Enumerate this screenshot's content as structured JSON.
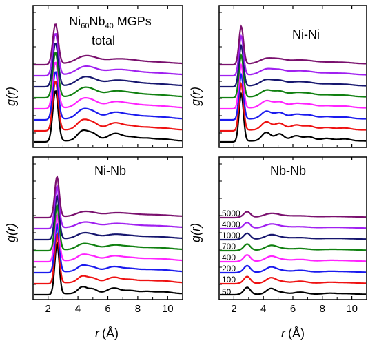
{
  "figure": {
    "ylabel": "g(r)",
    "xlabel_main": "r",
    "xlabel_unit": "(Å)"
  },
  "series_labels": [
    "50",
    "100",
    "200",
    "400",
    "700",
    "1000",
    "4000",
    "5000"
  ],
  "series_colors": [
    "#000000",
    "#ee1111",
    "#1a1aee",
    "#ff22ff",
    "#108010",
    "#16166e",
    "#a020f0",
    "#7a106e"
  ],
  "chart_data": [
    {
      "type": "line",
      "title": "Ni60Nb40 MGPs",
      "title_parts": {
        "base1": "Ni",
        "sub1": "60",
        "base2": "Nb",
        "sub2": "40",
        "rest": " MGPs"
      },
      "subtitle": "total",
      "xlabel": "r (Å)",
      "ylabel": "g(r)",
      "xlim": [
        1,
        11
      ],
      "xticks": [
        "2",
        "4",
        "6",
        "8",
        "10"
      ],
      "curves": "one curve per series_labels entry, stacked vertically in order 50 (bottom) to 5000 (top)",
      "peaks": [
        {
          "r": 2.5,
          "h": 9.5,
          "w": 0.18
        },
        {
          "r": 4.3,
          "h": 1.8,
          "w": 0.35
        },
        {
          "r": 5.0,
          "h": 1.3,
          "w": 0.35
        },
        {
          "r": 6.5,
          "h": 1.4,
          "w": 0.5
        },
        {
          "r": 7.6,
          "h": 0.6,
          "w": 0.4
        },
        {
          "r": 8.6,
          "h": 0.5,
          "w": 0.5
        },
        {
          "r": 9.8,
          "h": 0.3,
          "w": 0.5
        }
      ]
    },
    {
      "type": "line",
      "title": "Ni-Ni",
      "xlabel": "r (Å)",
      "ylabel": "g(r)",
      "xlim": [
        1,
        11
      ],
      "xticks": [
        "2",
        "4",
        "6",
        "8",
        "10"
      ],
      "peaks": [
        {
          "r": 2.5,
          "h": 9.5,
          "w": 0.15
        },
        {
          "r": 4.2,
          "h": 1.7,
          "w": 0.3
        },
        {
          "r": 5.1,
          "h": 1.4,
          "w": 0.3
        },
        {
          "r": 6.2,
          "h": 1.0,
          "w": 0.35
        },
        {
          "r": 7.1,
          "h": 0.8,
          "w": 0.35
        },
        {
          "r": 8.3,
          "h": 0.5,
          "w": 0.4
        },
        {
          "r": 9.5,
          "h": 0.4,
          "w": 0.4
        }
      ]
    },
    {
      "type": "line",
      "title": "Ni-Nb",
      "xlabel": "r (Å)",
      "ylabel": "g(r)",
      "xlim": [
        1,
        11
      ],
      "xticks": [
        "2",
        "4",
        "6",
        "8",
        "10"
      ],
      "peaks": [
        {
          "r": 2.6,
          "h": 9.0,
          "w": 0.15
        },
        {
          "r": 4.3,
          "h": 1.2,
          "w": 0.3
        },
        {
          "r": 5.0,
          "h": 0.8,
          "w": 0.3
        },
        {
          "r": 6.4,
          "h": 1.0,
          "w": 0.45
        },
        {
          "r": 7.5,
          "h": 0.5,
          "w": 0.4
        },
        {
          "r": 8.6,
          "h": 0.4,
          "w": 0.5
        },
        {
          "r": 9.8,
          "h": 0.3,
          "w": 0.5
        }
      ]
    },
    {
      "type": "line",
      "title": "Nb-Nb",
      "xlabel": "r (Å)",
      "ylabel": "g(r)",
      "xlim": [
        1,
        11
      ],
      "xticks": [
        "2",
        "4",
        "6",
        "8",
        "10"
      ],
      "peaks": [
        {
          "r": 2.9,
          "h": 3.2,
          "w": 0.22
        },
        {
          "r": 4.5,
          "h": 2.6,
          "w": 0.3
        },
        {
          "r": 5.2,
          "h": 0.9,
          "w": 0.35
        },
        {
          "r": 6.5,
          "h": 1.0,
          "w": 0.45
        },
        {
          "r": 8.5,
          "h": 0.5,
          "w": 0.5
        },
        {
          "r": 9.7,
          "h": 0.3,
          "w": 0.5
        }
      ]
    }
  ]
}
